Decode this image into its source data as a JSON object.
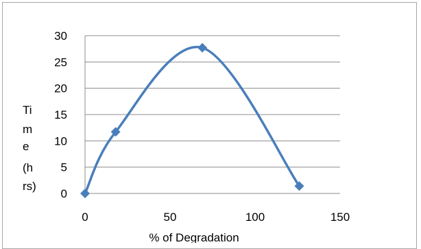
{
  "chart_data": {
    "type": "line",
    "title": "",
    "xlabel": "% of Degradation",
    "ylabel_lines": [
      "Ti",
      "m",
      "e",
      "(h",
      "rs)"
    ],
    "xlim": [
      0,
      150
    ],
    "ylim": [
      0,
      30
    ],
    "x_ticks": [
      "0",
      "50",
      "100",
      "150"
    ],
    "y_ticks": [
      "0",
      "5",
      "10",
      "15",
      "20",
      "25",
      "30"
    ],
    "grid": "horizontal",
    "legend": "none",
    "smooth": true,
    "series": [
      {
        "x": [
          0,
          18,
          69,
          126
        ],
        "y": [
          0,
          11.7,
          27.7,
          1.4
        ]
      }
    ],
    "line_color": "#4a7ebb",
    "marker": "diamond"
  }
}
